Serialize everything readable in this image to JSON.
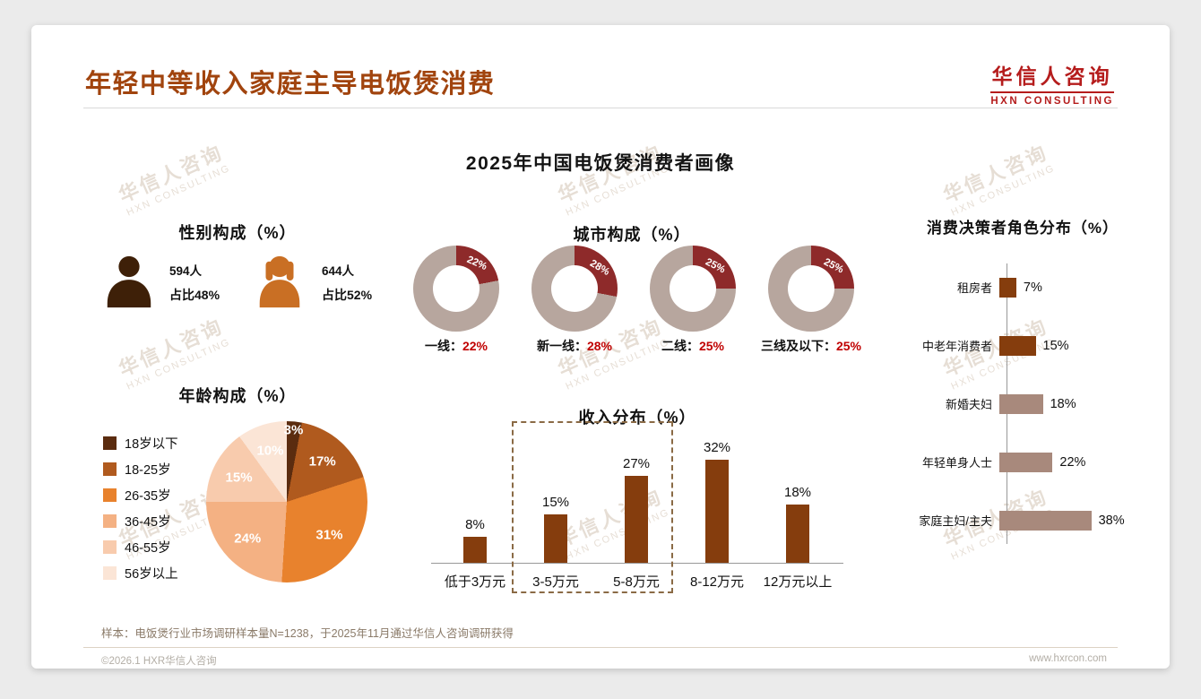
{
  "page": {
    "title": "年轻中等收入家庭主导电饭煲消费",
    "logo": {
      "cn": "华信人咨询",
      "en": "HXN CONSULTING"
    },
    "subtitle": "2025年中国电饭煲消费者画像",
    "watermark": {
      "cn": "华信人咨询",
      "en": "HXN CONSULTING"
    },
    "footer_note": "样本：电饭煲行业市场调研样本量N=1238，于2025年11月通过华信人咨询调研获得",
    "copyright": "©2026.1 HXR华信人咨询",
    "website": "www.hxrcon.com"
  },
  "colors": {
    "title_brown": "#a1440e",
    "logo_red": "#b51c1c",
    "value_red": "#c00000"
  },
  "gender": {
    "heading": "性别构成（%）",
    "male": {
      "count": "594人",
      "share": "占比48%",
      "color": "#3e2008"
    },
    "female": {
      "count": "644人",
      "share": "占比52%",
      "color": "#c96f24"
    }
  },
  "chart_data": [
    {
      "id": "city",
      "type": "pie",
      "variant": "donut-set",
      "title": "城市构成（%）",
      "categories": [
        "一线",
        "新一线",
        "二线",
        "三线及以下"
      ],
      "values": [
        22,
        28,
        25,
        25
      ],
      "highlight_color": "#8e2a2a",
      "base_color": "#b7a69e"
    },
    {
      "id": "age",
      "type": "pie",
      "title": "年龄构成（%）",
      "categories": [
        "18岁以下",
        "18-25岁",
        "26-35岁",
        "36-45岁",
        "46-55岁",
        "56岁以上"
      ],
      "values": [
        3,
        17,
        31,
        24,
        15,
        10
      ],
      "colors": [
        "#5b2c0f",
        "#b05a1e",
        "#e8822d",
        "#f4b183",
        "#f8cbad",
        "#fbe5d6"
      ],
      "legend_position": "left"
    },
    {
      "id": "income",
      "type": "bar",
      "title": "收入分布（%）",
      "categories": [
        "低于3万元",
        "3-5万元",
        "5-8万元",
        "8-12万元",
        "12万元以上"
      ],
      "values": [
        8,
        15,
        27,
        32,
        18
      ],
      "bar_color": "#853d0d",
      "highlight_box": [
        "3-5万元",
        "5-8万元"
      ],
      "ylim": [
        0,
        35
      ],
      "grid": false
    },
    {
      "id": "decision",
      "type": "bar",
      "orientation": "horizontal",
      "title": "消费决策者角色分布（%）",
      "categories": [
        "租房者",
        "中老年消费者",
        "新婚夫妇",
        "年轻单身人士",
        "家庭主妇/主夫"
      ],
      "values": [
        7,
        15,
        18,
        22,
        38
      ],
      "bar_colors": [
        "#853d0d",
        "#853d0d",
        "#a8897c",
        "#a8897c",
        "#a8897c"
      ],
      "xlim": [
        0,
        40
      ],
      "grid": false
    }
  ]
}
